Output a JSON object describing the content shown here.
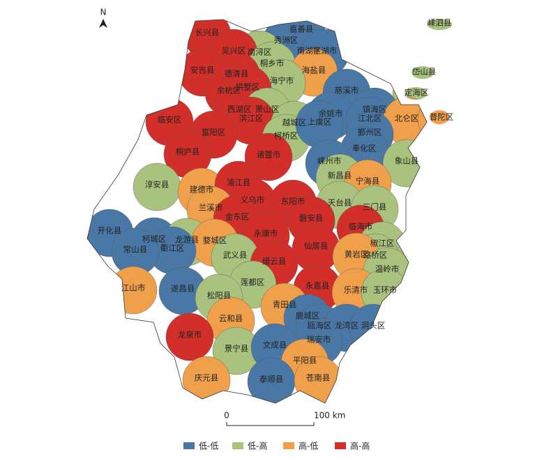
{
  "north": "N",
  "scale_bar": {
    "start": "0",
    "end": "100 km"
  },
  "legend": [
    {
      "label": "低-低",
      "color": "#4a78a6"
    },
    {
      "label": "低-高",
      "color": "#a9c27d"
    },
    {
      "label": "高-低",
      "color": "#f0a04b"
    },
    {
      "label": "高-高",
      "color": "#d32f2a"
    }
  ],
  "regions": [
    {
      "name": "长兴县",
      "cluster": "高-高"
    },
    {
      "name": "嘉善县",
      "cluster": "低-低"
    },
    {
      "name": "秀洲区",
      "cluster": "低-低"
    },
    {
      "name": "南浔区",
      "cluster": "低-高"
    },
    {
      "name": "吴兴区",
      "cluster": "高-高"
    },
    {
      "name": "南湖区",
      "cluster": "低-低"
    },
    {
      "name": "平湖市",
      "cluster": "低-低"
    },
    {
      "name": "嵊泗县",
      "cluster": "低-高"
    },
    {
      "name": "桐乡市",
      "cluster": "低-高"
    },
    {
      "name": "海盐县",
      "cluster": "高-低"
    },
    {
      "name": "岱山县",
      "cluster": "低-高"
    },
    {
      "name": "安吉县",
      "cluster": "高-高"
    },
    {
      "name": "德清县",
      "cluster": "高-高"
    },
    {
      "name": "海宁市",
      "cluster": "低-高"
    },
    {
      "name": "余杭区",
      "cluster": "高-高"
    },
    {
      "name": "拱墅区",
      "cluster": "高-高"
    },
    {
      "name": "慈溪市",
      "cluster": "低-低"
    },
    {
      "name": "定海区",
      "cluster": "低-高"
    },
    {
      "name": "西湖区",
      "cluster": "高-高"
    },
    {
      "name": "萧山区",
      "cluster": "低-高"
    },
    {
      "name": "滨江区",
      "cluster": "高-高"
    },
    {
      "name": "临安区",
      "cluster": "高-高"
    },
    {
      "name": "余姚市",
      "cluster": "低-低"
    },
    {
      "name": "镇海区",
      "cluster": "低-低"
    },
    {
      "name": "江北区",
      "cluster": "低-低"
    },
    {
      "name": "北仑区",
      "cluster": "高-低"
    },
    {
      "name": "普陀区",
      "cluster": "高-低"
    },
    {
      "name": "越城区",
      "cluster": "低-高"
    },
    {
      "name": "柯桥区",
      "cluster": "低-高"
    },
    {
      "name": "上虞区",
      "cluster": "低-低"
    },
    {
      "name": "鄞州区",
      "cluster": "低-低"
    },
    {
      "name": "富阳区",
      "cluster": "高-高"
    },
    {
      "name": "奉化区",
      "cluster": "低-低"
    },
    {
      "name": "桐庐县",
      "cluster": "高-高"
    },
    {
      "name": "诸暨市",
      "cluster": "高-高"
    },
    {
      "name": "嵊州市",
      "cluster": "低-低"
    },
    {
      "name": "象山县",
      "cluster": "低-高"
    },
    {
      "name": "淳安县",
      "cluster": "低-高"
    },
    {
      "name": "建德市",
      "cluster": "高-低"
    },
    {
      "name": "新昌县",
      "cluster": "低-高"
    },
    {
      "name": "宁海县",
      "cluster": "高-低"
    },
    {
      "name": "浦江县",
      "cluster": "高-高"
    },
    {
      "name": "兰溪市",
      "cluster": "高-低"
    },
    {
      "name": "义乌市",
      "cluster": "高-高"
    },
    {
      "name": "东阳市",
      "cluster": "高-高"
    },
    {
      "name": "天台县",
      "cluster": "低-高"
    },
    {
      "name": "三门县",
      "cluster": "低-高"
    },
    {
      "name": "金东区",
      "cluster": "高-高"
    },
    {
      "name": "磐安县",
      "cluster": "高-高"
    },
    {
      "name": "开化县",
      "cluster": "低-低"
    },
    {
      "name": "临海市",
      "cluster": "高-高"
    },
    {
      "name": "柯城区",
      "cluster": "低-低"
    },
    {
      "name": "永康市",
      "cluster": "高-高"
    },
    {
      "name": "龙游县",
      "cluster": "低-高"
    },
    {
      "name": "婺城区",
      "cluster": "高-低"
    },
    {
      "name": "衢江区",
      "cluster": "低-低"
    },
    {
      "name": "常山县",
      "cluster": "低-低"
    },
    {
      "name": "仙居县",
      "cluster": "高-高"
    },
    {
      "name": "椒江区",
      "cluster": "低-高"
    },
    {
      "name": "路桥区",
      "cluster": "低-高"
    },
    {
      "name": "黄岩区",
      "cluster": "高-低"
    },
    {
      "name": "武义县",
      "cluster": "低-高"
    },
    {
      "name": "缙云县",
      "cluster": "高-高"
    },
    {
      "name": "温岭市",
      "cluster": "低-高"
    },
    {
      "name": "江山市",
      "cluster": "高-低"
    },
    {
      "name": "遂昌县",
      "cluster": "低-低"
    },
    {
      "name": "莲都区",
      "cluster": "低-高"
    },
    {
      "name": "永嘉县",
      "cluster": "高-高"
    },
    {
      "name": "乐清市",
      "cluster": "高-低"
    },
    {
      "name": "玉环市",
      "cluster": "低-高"
    },
    {
      "name": "松阳县",
      "cluster": "低-高"
    },
    {
      "name": "青田县",
      "cluster": "高-低"
    },
    {
      "name": "云和县",
      "cluster": "高-低"
    },
    {
      "name": "鹿城区",
      "cluster": "低-低"
    },
    {
      "name": "瓯海区",
      "cluster": "低-低"
    },
    {
      "name": "龙湾区",
      "cluster": "低-低"
    },
    {
      "name": "洞头区",
      "cluster": "低-低"
    },
    {
      "name": "龙泉市",
      "cluster": "高-高"
    },
    {
      "name": "瑞安市",
      "cluster": "低-低"
    },
    {
      "name": "景宁县",
      "cluster": "低-高"
    },
    {
      "name": "文成县",
      "cluster": "低-低"
    },
    {
      "name": "平阳县",
      "cluster": "高-低"
    },
    {
      "name": "庆元县",
      "cluster": "高-低"
    },
    {
      "name": "泰顺县",
      "cluster": "低-低"
    },
    {
      "name": "苍南县",
      "cluster": "高-低"
    }
  ]
}
